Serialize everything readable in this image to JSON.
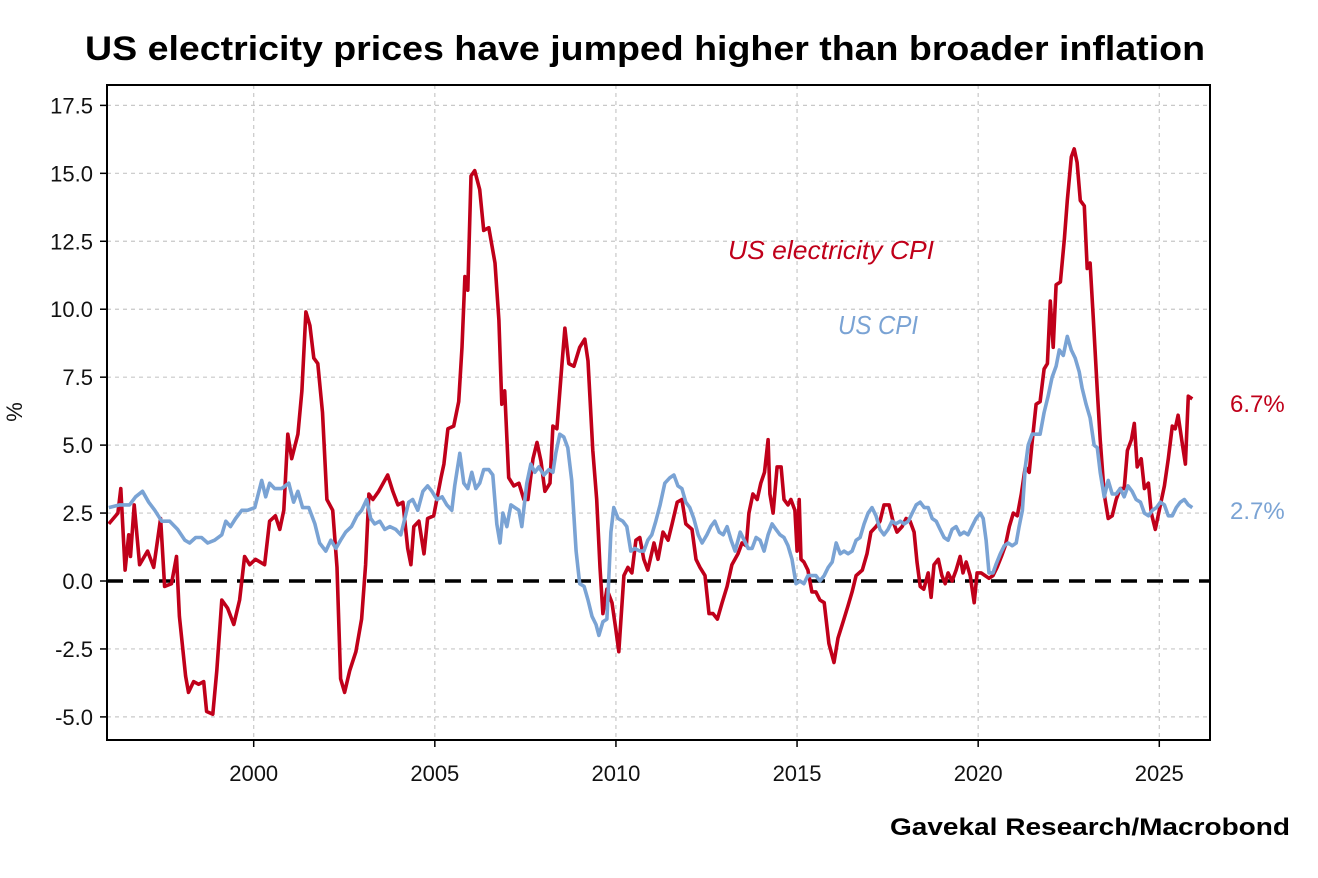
{
  "chart_data": {
    "type": "line",
    "title": "US electricity prices have jumped higher than broader inflation",
    "xlabel": "",
    "ylabel": "%",
    "source": "Gavekal Research/Macrobond",
    "xlim": [
      1995.95,
      2026.4
    ],
    "ylim": [
      -5.85,
      18.25
    ],
    "yticks": [
      17.5,
      15.0,
      12.5,
      10.0,
      7.5,
      5.0,
      2.5,
      0.0,
      -2.5,
      -5.0
    ],
    "ytick_labels": [
      "17.5",
      "15.0",
      "12.5",
      "10.0",
      "7.5",
      "5.0",
      "2.5",
      "0.0",
      "-2.5",
      "-5.0"
    ],
    "xticks": [
      2000,
      2005,
      2010,
      2015,
      2020,
      2025
    ],
    "xtick_labels": [
      "2000",
      "2005",
      "2010",
      "2015",
      "2020",
      "2025"
    ],
    "grid": true,
    "zero_line": "dashed",
    "series": [
      {
        "name": "US electricity CPI",
        "color": "#c0001a",
        "end_label": "6.7%",
        "x": [
          1996.0,
          1996.25,
          1996.33,
          1996.45,
          1996.55,
          1996.6,
          1996.7,
          1996.85,
          1997.07,
          1997.24,
          1997.43,
          1997.54,
          1997.73,
          1997.87,
          1997.95,
          1998.12,
          1998.2,
          1998.34,
          1998.48,
          1998.62,
          1998.7,
          1998.87,
          1998.98,
          1999.12,
          1999.28,
          1999.45,
          1999.61,
          1999.75,
          1999.89,
          2000.05,
          2000.3,
          2000.44,
          2000.6,
          2000.72,
          2000.83,
          2000.94,
          2001.05,
          2001.22,
          2001.33,
          2001.44,
          2001.55,
          2001.66,
          2001.77,
          2001.9,
          2002.02,
          2002.18,
          2002.3,
          2002.4,
          2002.51,
          2002.65,
          2002.82,
          2002.98,
          2003.09,
          2003.18,
          2003.29,
          2003.45,
          2003.7,
          2003.84,
          2003.98,
          2004.12,
          2004.25,
          2004.34,
          2004.42,
          2004.56,
          2004.7,
          2004.8,
          2004.97,
          2005.17,
          2005.25,
          2005.36,
          2005.52,
          2005.66,
          2005.75,
          2005.83,
          2005.91,
          2006.0,
          2006.1,
          2006.24,
          2006.35,
          2006.49,
          2006.66,
          2006.77,
          2006.85,
          2006.93,
          2007.04,
          2007.18,
          2007.32,
          2007.46,
          2007.57,
          2007.71,
          2007.82,
          2007.93,
          2008.04,
          2008.18,
          2008.26,
          2008.37,
          2008.51,
          2008.59,
          2008.7,
          2008.84,
          2009.0,
          2009.14,
          2009.23,
          2009.36,
          2009.47,
          2009.56,
          2009.64,
          2009.75,
          2009.89,
          2010.0,
          2010.08,
          2010.22,
          2010.33,
          2010.44,
          2010.55,
          2010.66,
          2010.77,
          2010.88,
          2011.05,
          2011.16,
          2011.3,
          2011.44,
          2011.55,
          2011.69,
          2011.82,
          2011.93,
          2012.1,
          2012.21,
          2012.32,
          2012.46,
          2012.57,
          2012.68,
          2012.8,
          2012.93,
          2013.07,
          2013.2,
          2013.37,
          2013.48,
          2013.6,
          2013.67,
          2013.78,
          2013.9,
          2014.0,
          2014.1,
          2014.2,
          2014.25,
          2014.34,
          2014.45,
          2014.56,
          2014.64,
          2014.75,
          2014.83,
          2014.94,
          2015.0,
          2015.06,
          2015.11,
          2015.19,
          2015.3,
          2015.41,
          2015.52,
          2015.63,
          2015.75,
          2015.88,
          2016.02,
          2016.13,
          2016.27,
          2016.41,
          2016.52,
          2016.63,
          2016.8,
          2016.93,
          2017.04,
          2017.18,
          2017.29,
          2017.4,
          2017.54,
          2017.65,
          2017.76,
          2017.9,
          2018.01,
          2018.12,
          2018.23,
          2018.31,
          2018.4,
          2018.5,
          2018.62,
          2018.7,
          2018.78,
          2018.9,
          2019.0,
          2019.09,
          2019.17,
          2019.28,
          2019.39,
          2019.5,
          2019.58,
          2019.67,
          2019.78,
          2019.89,
          2019.97,
          2020.08,
          2020.19,
          2020.3,
          2020.41,
          2020.52,
          2020.64,
          2020.75,
          2020.86,
          2020.97,
          2021.08,
          2021.19,
          2021.3,
          2021.41,
          2021.49,
          2021.6,
          2021.71,
          2021.82,
          2021.91,
          2021.99,
          2022.07,
          2022.15,
          2022.27,
          2022.38,
          2022.46,
          2022.57,
          2022.65,
          2022.73,
          2022.82,
          2022.93,
          2023.01,
          2023.09,
          2023.18,
          2023.29,
          2023.37,
          2023.48,
          2023.59,
          2023.7,
          2023.81,
          2023.92,
          2024.03,
          2024.12,
          2024.23,
          2024.31,
          2024.39,
          2024.5,
          2024.59,
          2024.7,
          2024.78,
          2024.89,
          2025.03,
          2025.14,
          2025.25,
          2025.36,
          2025.44,
          2025.52,
          2025.64,
          2025.72,
          2025.8,
          2025.91
        ],
        "values": [
          2.1,
          2.5,
          3.4,
          0.4,
          1.7,
          0.9,
          2.8,
          0.6,
          1.1,
          0.5,
          2.3,
          -0.2,
          -0.1,
          0.9,
          -1.3,
          -3.5,
          -4.1,
          -3.7,
          -3.8,
          -3.7,
          -4.8,
          -4.9,
          -3.3,
          -0.7,
          -1.0,
          -1.6,
          -0.7,
          0.9,
          0.6,
          0.8,
          0.6,
          2.2,
          2.4,
          1.9,
          2.6,
          5.4,
          4.5,
          5.4,
          7.0,
          9.9,
          9.4,
          8.2,
          8.0,
          6.2,
          3.0,
          2.6,
          0.5,
          -3.6,
          -4.1,
          -3.3,
          -2.6,
          -1.4,
          0.6,
          3.2,
          3.0,
          3.3,
          3.9,
          3.3,
          2.8,
          2.9,
          1.2,
          0.6,
          2.0,
          2.2,
          1.0,
          2.3,
          2.4,
          3.8,
          4.3,
          5.6,
          5.7,
          6.6,
          8.6,
          11.2,
          10.7,
          14.9,
          15.1,
          14.4,
          12.9,
          13.0,
          11.7,
          9.6,
          6.5,
          7.0,
          3.8,
          3.5,
          3.6,
          3.0,
          3.0,
          4.5,
          5.1,
          4.4,
          3.3,
          3.6,
          5.7,
          5.6,
          8.0,
          9.3,
          8.0,
          7.9,
          8.6,
          8.9,
          8.1,
          4.8,
          3.0,
          0.5,
          -1.2,
          -0.3,
          -0.8,
          -1.8,
          -2.6,
          0.2,
          0.5,
          0.3,
          1.5,
          1.6,
          0.8,
          0.4,
          1.4,
          0.8,
          1.8,
          1.5,
          2.1,
          2.9,
          3.0,
          2.1,
          1.9,
          0.8,
          0.5,
          0.2,
          -1.2,
          -1.2,
          -1.4,
          -0.8,
          -0.2,
          0.6,
          1.0,
          1.4,
          1.3,
          2.5,
          3.2,
          3.0,
          3.6,
          4.0,
          5.2,
          3.2,
          2.5,
          4.2,
          4.2,
          3.0,
          2.8,
          3.0,
          2.6,
          1.1,
          3.0,
          0.8,
          0.7,
          0.4,
          -0.4,
          -0.4,
          -0.7,
          -0.8,
          -2.3,
          -3.0,
          -2.1,
          -1.5,
          -0.9,
          -0.4,
          0.2,
          0.4,
          1.0,
          1.8,
          2.0,
          2.2,
          2.8,
          2.8,
          2.2,
          1.8,
          2.0,
          2.3,
          2.2,
          1.8,
          0.7,
          -0.2,
          -0.3,
          0.3,
          -0.6,
          0.6,
          0.8,
          0.2,
          -0.1,
          0.3,
          0.0,
          0.4,
          0.9,
          0.3,
          0.7,
          0.2,
          -0.8,
          0.3,
          0.3,
          0.2,
          0.1,
          0.2,
          0.5,
          0.9,
          1.3,
          2.0,
          2.5,
          2.4,
          3.2,
          4.2,
          4.0,
          5.1,
          6.5,
          6.6,
          7.8,
          8.0,
          10.3,
          8.6,
          10.9,
          11.0,
          12.6,
          14.0,
          15.6,
          15.9,
          15.4,
          14.0,
          13.8,
          11.5,
          11.7,
          9.6,
          7.0,
          5.2,
          3.2,
          2.3,
          2.4,
          3.0,
          3.4,
          3.4,
          4.8,
          5.2,
          5.8,
          4.2,
          4.5,
          3.4,
          3.6,
          2.5,
          1.9,
          2.8,
          3.5,
          4.5,
          5.7,
          5.6,
          6.1,
          5.0,
          4.3,
          6.8,
          6.7
        ]
      },
      {
        "name": "US CPI",
        "color": "#7aa3d4",
        "end_label": "2.7%",
        "x": [
          1996.0,
          1996.3,
          1996.57,
          1996.74,
          1996.93,
          1997.1,
          1997.27,
          1997.46,
          1997.68,
          1997.9,
          1998.1,
          1998.23,
          1998.4,
          1998.56,
          1998.73,
          1998.92,
          1999.12,
          1999.23,
          1999.36,
          1999.5,
          1999.67,
          1999.83,
          2000.03,
          2000.22,
          2000.33,
          2000.44,
          2000.58,
          2000.77,
          2000.97,
          2001.1,
          2001.22,
          2001.35,
          2001.52,
          2001.69,
          2001.82,
          2001.99,
          2002.13,
          2002.27,
          2002.4,
          2002.54,
          2002.7,
          2002.85,
          2002.98,
          2003.12,
          2003.23,
          2003.34,
          2003.48,
          2003.62,
          2003.76,
          2003.92,
          2004.06,
          2004.17,
          2004.28,
          2004.39,
          2004.53,
          2004.67,
          2004.8,
          2004.92,
          2005.06,
          2005.2,
          2005.33,
          2005.47,
          2005.55,
          2005.69,
          2005.8,
          2005.91,
          2006.02,
          2006.13,
          2006.24,
          2006.35,
          2006.49,
          2006.6,
          2006.71,
          2006.8,
          2006.88,
          2006.99,
          2007.1,
          2007.21,
          2007.32,
          2007.4,
          2007.54,
          2007.65,
          2007.76,
          2007.87,
          2008.01,
          2008.15,
          2008.26,
          2008.34,
          2008.45,
          2008.56,
          2008.67,
          2008.78,
          2008.9,
          2009.0,
          2009.12,
          2009.23,
          2009.34,
          2009.45,
          2009.53,
          2009.64,
          2009.75,
          2009.86,
          2009.94,
          2010.06,
          2010.19,
          2010.3,
          2010.41,
          2010.52,
          2010.66,
          2010.77,
          2010.88,
          2010.99,
          2011.1,
          2011.22,
          2011.35,
          2011.49,
          2011.6,
          2011.71,
          2011.82,
          2011.93,
          2012.04,
          2012.15,
          2012.27,
          2012.38,
          2012.51,
          2012.62,
          2012.73,
          2012.85,
          2012.96,
          2013.07,
          2013.18,
          2013.29,
          2013.43,
          2013.54,
          2013.65,
          2013.76,
          2013.87,
          2013.98,
          2014.09,
          2014.2,
          2014.31,
          2014.42,
          2014.53,
          2014.64,
          2014.75,
          2014.86,
          2014.97,
          2015.08,
          2015.19,
          2015.3,
          2015.41,
          2015.52,
          2015.63,
          2015.75,
          2015.86,
          2015.97,
          2016.08,
          2016.19,
          2016.3,
          2016.41,
          2016.52,
          2016.63,
          2016.74,
          2016.85,
          2016.96,
          2017.07,
          2017.18,
          2017.29,
          2017.4,
          2017.51,
          2017.62,
          2017.73,
          2017.85,
          2017.96,
          2018.07,
          2018.18,
          2018.29,
          2018.4,
          2018.51,
          2018.62,
          2018.73,
          2018.84,
          2018.95,
          2019.06,
          2019.17,
          2019.28,
          2019.39,
          2019.5,
          2019.61,
          2019.72,
          2019.83,
          2019.94,
          2020.06,
          2020.14,
          2020.22,
          2020.3,
          2020.41,
          2020.49,
          2020.61,
          2020.72,
          2020.83,
          2020.94,
          2021.05,
          2021.13,
          2021.22,
          2021.3,
          2021.38,
          2021.49,
          2021.6,
          2021.71,
          2021.82,
          2021.93,
          2022.04,
          2022.15,
          2022.24,
          2022.35,
          2022.46,
          2022.57,
          2022.68,
          2022.79,
          2022.87,
          2022.98,
          2023.09,
          2023.2,
          2023.29,
          2023.37,
          2023.48,
          2023.59,
          2023.7,
          2023.81,
          2023.92,
          2024.03,
          2024.14,
          2024.25,
          2024.36,
          2024.48,
          2024.59,
          2024.7,
          2024.81,
          2024.92,
          2025.03,
          2025.14,
          2025.25,
          2025.36,
          2025.47,
          2025.58,
          2025.69,
          2025.8,
          2025.91
        ],
        "values": [
          2.7,
          2.8,
          2.8,
          3.1,
          3.3,
          2.9,
          2.6,
          2.2,
          2.2,
          1.9,
          1.5,
          1.4,
          1.6,
          1.6,
          1.4,
          1.5,
          1.7,
          2.2,
          2.0,
          2.3,
          2.6,
          2.6,
          2.7,
          3.7,
          3.1,
          3.6,
          3.4,
          3.4,
          3.6,
          2.9,
          3.3,
          2.7,
          2.7,
          2.1,
          1.4,
          1.1,
          1.5,
          1.2,
          1.5,
          1.8,
          2.0,
          2.4,
          2.6,
          3.0,
          2.3,
          2.1,
          2.2,
          1.9,
          2.0,
          1.9,
          1.7,
          2.3,
          2.9,
          3.0,
          2.6,
          3.3,
          3.5,
          3.3,
          3.0,
          3.1,
          2.8,
          2.6,
          3.5,
          4.7,
          3.6,
          3.4,
          4.0,
          3.4,
          3.6,
          4.1,
          4.1,
          3.9,
          2.1,
          1.4,
          2.5,
          2.0,
          2.8,
          2.7,
          2.6,
          2.0,
          3.6,
          4.3,
          4.0,
          4.2,
          3.9,
          4.1,
          4.0,
          4.7,
          5.4,
          5.3,
          4.9,
          3.7,
          1.1,
          -0.1,
          -0.2,
          -0.7,
          -1.3,
          -1.6,
          -2.0,
          -1.5,
          -1.4,
          1.8,
          2.7,
          2.3,
          2.2,
          2.0,
          1.1,
          1.2,
          1.1,
          1.1,
          1.5,
          1.7,
          2.2,
          2.8,
          3.6,
          3.8,
          3.9,
          3.5,
          3.4,
          2.9,
          2.7,
          2.3,
          1.7,
          1.4,
          1.7,
          2.0,
          2.2,
          1.8,
          1.7,
          2.0,
          1.5,
          1.1,
          1.8,
          1.5,
          1.2,
          1.2,
          1.6,
          1.5,
          1.1,
          1.7,
          2.1,
          1.9,
          1.7,
          1.6,
          1.3,
          0.8,
          -0.1,
          0.0,
          -0.1,
          0.2,
          0.2,
          0.2,
          0.0,
          0.2,
          0.5,
          0.7,
          1.4,
          1.0,
          1.1,
          1.0,
          1.1,
          1.5,
          1.6,
          2.1,
          2.5,
          2.7,
          2.4,
          1.9,
          1.7,
          1.9,
          2.2,
          2.1,
          2.2,
          2.1,
          2.2,
          2.5,
          2.8,
          2.9,
          2.7,
          2.7,
          2.3,
          2.2,
          1.9,
          1.6,
          1.5,
          1.9,
          2.0,
          1.7,
          1.8,
          1.7,
          2.0,
          2.3,
          2.5,
          2.3,
          1.5,
          0.3,
          0.3,
          0.6,
          1.0,
          1.3,
          1.4,
          1.3,
          1.4,
          2.0,
          2.6,
          4.2,
          5.0,
          5.4,
          5.4,
          5.4,
          6.2,
          6.8,
          7.5,
          7.9,
          8.5,
          8.3,
          9.0,
          8.5,
          8.2,
          7.7,
          7.1,
          6.5,
          6.0,
          5.0,
          4.9,
          4.0,
          3.1,
          3.7,
          3.2,
          3.2,
          3.4,
          3.1,
          3.5,
          3.3,
          3.0,
          2.9,
          2.5,
          2.4,
          2.6,
          2.7,
          2.9,
          2.8,
          2.4,
          2.4,
          2.7,
          2.9,
          3.0,
          2.8,
          2.7
        ]
      }
    ]
  }
}
